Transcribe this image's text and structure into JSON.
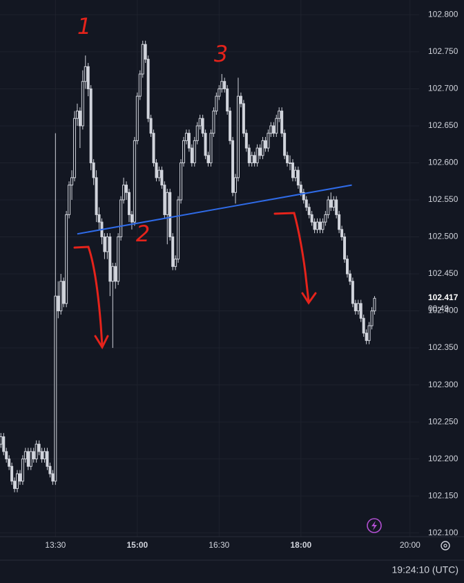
{
  "chart_data": {
    "type": "candlestick",
    "xlim": [
      "12:29",
      "20:10"
    ],
    "ylim": [
      102.095,
      102.82
    ],
    "xticks": [
      "13:30",
      "15:00",
      "16:30",
      "18:00",
      "20:00"
    ],
    "yticks": [
      {
        "value": 102.1,
        "label": "102.100"
      },
      {
        "value": 102.15,
        "label": "102.150"
      },
      {
        "value": 102.2,
        "label": "102.200"
      },
      {
        "value": 102.25,
        "label": "102.250"
      },
      {
        "value": 102.3,
        "label": "102.300"
      },
      {
        "value": 102.35,
        "label": "102.350"
      },
      {
        "value": 102.4,
        "label": "102.400"
      },
      {
        "value": 102.45,
        "label": "102.450"
      },
      {
        "value": 102.5,
        "label": "102.500"
      },
      {
        "value": 102.55,
        "label": "102.550"
      },
      {
        "value": 102.6,
        "label": "102.600"
      },
      {
        "value": 102.65,
        "label": "102.650"
      },
      {
        "value": 102.7,
        "label": "102.700"
      },
      {
        "value": 102.75,
        "label": "102.750"
      },
      {
        "value": 102.8,
        "label": "102.800"
      }
    ],
    "grid": true,
    "color": "#d1d4dc",
    "countdown": "00:49",
    "clock": "19:24:10 (UTC)",
    "annotations": [
      "1",
      "2",
      "3"
    ],
    "trendline": {
      "x": [
        "13:54",
        "18:56"
      ],
      "y": [
        102.504,
        102.57
      ],
      "color": "#2f6be8"
    },
    "x": [
      "12:30",
      "12:33",
      "12:36",
      "12:39",
      "12:42",
      "12:45",
      "12:48",
      "12:51",
      "12:54",
      "12:57",
      "13:00",
      "13:03",
      "13:06",
      "13:09",
      "13:12",
      "13:15",
      "13:18",
      "13:21",
      "13:24",
      "13:27",
      "13:30",
      "13:33",
      "13:36",
      "13:39",
      "13:42",
      "13:45",
      "13:48",
      "13:51",
      "13:54",
      "13:57",
      "14:00",
      "14:03",
      "14:06",
      "14:09",
      "14:12",
      "14:15",
      "14:18",
      "14:21",
      "14:24",
      "14:27",
      "14:30",
      "14:33",
      "14:36",
      "14:39",
      "14:42",
      "14:45",
      "14:48",
      "14:51",
      "14:54",
      "14:57",
      "15:00",
      "15:03",
      "15:06",
      "15:09",
      "15:12",
      "15:15",
      "15:18",
      "15:21",
      "15:24",
      "15:27",
      "15:30",
      "15:33",
      "15:36",
      "15:39",
      "15:42",
      "15:45",
      "15:48",
      "15:51",
      "15:54",
      "15:57",
      "16:00",
      "16:03",
      "16:06",
      "16:09",
      "16:12",
      "16:15",
      "16:18",
      "16:21",
      "16:24",
      "16:27",
      "16:30",
      "16:33",
      "16:36",
      "16:39",
      "16:42",
      "16:45",
      "16:48",
      "16:51",
      "16:54",
      "16:57",
      "17:00",
      "17:03",
      "17:06",
      "17:09",
      "17:12",
      "17:15",
      "17:18",
      "17:21",
      "17:24",
      "17:27",
      "17:30",
      "17:33",
      "17:36",
      "17:39",
      "17:42",
      "17:45",
      "17:48",
      "17:51",
      "17:54",
      "17:57",
      "18:00",
      "18:03",
      "18:06",
      "18:09",
      "18:12",
      "18:15",
      "18:18",
      "18:21",
      "18:24",
      "18:27",
      "18:30",
      "18:33",
      "18:36",
      "18:39",
      "18:42",
      "18:45",
      "18:48",
      "18:51",
      "18:54",
      "18:57",
      "19:00",
      "19:03",
      "19:06",
      "19:09",
      "19:12",
      "19:15",
      "19:18",
      "19:21"
    ],
    "ohlc": [
      [
        102.22,
        102.235,
        102.215,
        102.23
      ],
      [
        102.23,
        102.235,
        102.205,
        102.21
      ],
      [
        102.21,
        102.215,
        102.195,
        102.2
      ],
      [
        102.2,
        102.205,
        102.185,
        102.19
      ],
      [
        102.19,
        102.195,
        102.165,
        102.17
      ],
      [
        102.17,
        102.175,
        102.155,
        102.16
      ],
      [
        102.16,
        102.185,
        102.155,
        102.18
      ],
      [
        102.18,
        102.185,
        102.165,
        102.17
      ],
      [
        102.17,
        102.205,
        102.165,
        102.2
      ],
      [
        102.2,
        102.215,
        102.195,
        102.21
      ],
      [
        102.21,
        102.215,
        102.185,
        102.19
      ],
      [
        102.19,
        102.215,
        102.185,
        102.21
      ],
      [
        102.21,
        102.215,
        102.195,
        102.2
      ],
      [
        102.2,
        102.225,
        102.195,
        102.22
      ],
      [
        102.22,
        102.225,
        102.205,
        102.21
      ],
      [
        102.21,
        102.215,
        102.195,
        102.2
      ],
      [
        102.2,
        102.215,
        102.195,
        102.21
      ],
      [
        102.21,
        102.215,
        102.185,
        102.19
      ],
      [
        102.19,
        102.195,
        102.175,
        102.18
      ],
      [
        102.18,
        102.185,
        102.165,
        102.17
      ],
      [
        102.17,
        102.64,
        102.165,
        102.42
      ],
      [
        102.42,
        102.44,
        102.39,
        102.4
      ],
      [
        102.4,
        102.45,
        102.395,
        102.44
      ],
      [
        102.44,
        102.445,
        102.405,
        102.41
      ],
      [
        102.41,
        102.535,
        102.405,
        102.53
      ],
      [
        102.53,
        102.575,
        102.525,
        102.57
      ],
      [
        102.57,
        102.59,
        102.55,
        102.58
      ],
      [
        102.58,
        102.67,
        102.575,
        102.66
      ],
      [
        102.66,
        102.68,
        102.65,
        102.67
      ],
      [
        102.67,
        102.675,
        102.62,
        102.65
      ],
      [
        102.65,
        102.725,
        102.645,
        102.71
      ],
      [
        102.71,
        102.745,
        102.7,
        102.73
      ],
      [
        102.73,
        102.735,
        102.69,
        102.7
      ],
      [
        102.7,
        102.705,
        102.59,
        102.6
      ],
      [
        102.6,
        102.605,
        102.57,
        102.58
      ],
      [
        102.58,
        102.59,
        102.52,
        102.53
      ],
      [
        102.53,
        102.54,
        102.51,
        102.52
      ],
      [
        102.52,
        102.525,
        102.49,
        102.5
      ],
      [
        102.5,
        102.505,
        102.47,
        102.48
      ],
      [
        102.48,
        102.505,
        102.47,
        102.5
      ],
      [
        102.5,
        102.505,
        102.42,
        102.44
      ],
      [
        102.44,
        102.465,
        102.35,
        102.46
      ],
      [
        102.46,
        102.465,
        102.43,
        102.44
      ],
      [
        102.44,
        102.505,
        102.435,
        102.5
      ],
      [
        102.5,
        102.555,
        102.495,
        102.55
      ],
      [
        102.55,
        102.58,
        102.545,
        102.57
      ],
      [
        102.57,
        102.575,
        102.55,
        102.56
      ],
      [
        102.56,
        102.565,
        102.52,
        102.53
      ],
      [
        102.53,
        102.535,
        102.51,
        102.52
      ],
      [
        102.52,
        102.635,
        102.515,
        102.63
      ],
      [
        102.63,
        102.695,
        102.625,
        102.69
      ],
      [
        102.69,
        102.725,
        102.685,
        102.72
      ],
      [
        102.72,
        102.765,
        102.715,
        102.76
      ],
      [
        102.76,
        102.765,
        102.735,
        102.74
      ],
      [
        102.74,
        102.745,
        102.655,
        102.66
      ],
      [
        102.66,
        102.665,
        102.635,
        102.64
      ],
      [
        102.64,
        102.645,
        102.595,
        102.6
      ],
      [
        102.6,
        102.605,
        102.575,
        102.58
      ],
      [
        102.58,
        102.595,
        102.575,
        102.59
      ],
      [
        102.59,
        102.595,
        102.565,
        102.57
      ],
      [
        102.57,
        102.575,
        102.525,
        102.53
      ],
      [
        102.53,
        102.565,
        102.49,
        102.56
      ],
      [
        102.56,
        102.565,
        102.495,
        102.5
      ],
      [
        102.5,
        102.505,
        102.455,
        102.46
      ],
      [
        102.46,
        102.475,
        102.455,
        102.47
      ],
      [
        102.47,
        102.555,
        102.465,
        102.55
      ],
      [
        102.55,
        102.605,
        102.545,
        102.6
      ],
      [
        102.6,
        102.635,
        102.595,
        102.63
      ],
      [
        102.63,
        102.645,
        102.625,
        102.64
      ],
      [
        102.64,
        102.645,
        102.615,
        102.62
      ],
      [
        102.62,
        102.625,
        102.595,
        102.6
      ],
      [
        102.6,
        102.635,
        102.595,
        102.63
      ],
      [
        102.63,
        102.655,
        102.625,
        102.65
      ],
      [
        102.65,
        102.665,
        102.645,
        102.66
      ],
      [
        102.66,
        102.665,
        102.635,
        102.64
      ],
      [
        102.64,
        102.645,
        102.605,
        102.61
      ],
      [
        102.61,
        102.615,
        102.595,
        102.6
      ],
      [
        102.6,
        102.645,
        102.595,
        102.64
      ],
      [
        102.64,
        102.675,
        102.635,
        102.67
      ],
      [
        102.67,
        102.695,
        102.665,
        102.69
      ],
      [
        102.69,
        102.705,
        102.685,
        102.7
      ],
      [
        102.7,
        102.72,
        102.695,
        102.71
      ],
      [
        102.71,
        102.715,
        102.695,
        102.7
      ],
      [
        102.7,
        102.705,
        102.665,
        102.67
      ],
      [
        102.67,
        102.675,
        102.625,
        102.63
      ],
      [
        102.63,
        102.635,
        102.555,
        102.56
      ],
      [
        102.56,
        102.585,
        102.545,
        102.58
      ],
      [
        102.58,
        102.715,
        102.575,
        102.69
      ],
      [
        102.69,
        102.695,
        102.675,
        102.68
      ],
      [
        102.68,
        102.685,
        102.635,
        102.64
      ],
      [
        102.64,
        102.645,
        102.615,
        102.62
      ],
      [
        102.62,
        102.625,
        102.595,
        102.6
      ],
      [
        102.6,
        102.615,
        102.595,
        102.61
      ],
      [
        102.61,
        102.615,
        102.595,
        102.6
      ],
      [
        102.6,
        102.625,
        102.595,
        102.62
      ],
      [
        102.62,
        102.625,
        102.605,
        102.61
      ],
      [
        102.61,
        102.635,
        102.605,
        102.63
      ],
      [
        102.63,
        102.635,
        102.615,
        102.62
      ],
      [
        102.62,
        102.645,
        102.615,
        102.64
      ],
      [
        102.64,
        102.655,
        102.635,
        102.65
      ],
      [
        102.65,
        102.655,
        102.635,
        102.64
      ],
      [
        102.64,
        102.665,
        102.635,
        102.66
      ],
      [
        102.66,
        102.675,
        102.655,
        102.67
      ],
      [
        102.67,
        102.675,
        102.635,
        102.64
      ],
      [
        102.64,
        102.645,
        102.605,
        102.61
      ],
      [
        102.61,
        102.615,
        102.595,
        102.6
      ],
      [
        102.6,
        102.61,
        102.59,
        102.6
      ],
      [
        102.6,
        102.605,
        102.575,
        102.58
      ],
      [
        102.58,
        102.595,
        102.575,
        102.59
      ],
      [
        102.59,
        102.595,
        102.565,
        102.57
      ],
      [
        102.57,
        102.575,
        102.555,
        102.56
      ],
      [
        102.56,
        102.565,
        102.545,
        102.55
      ],
      [
        102.55,
        102.555,
        102.535,
        102.54
      ],
      [
        102.54,
        102.545,
        102.525,
        102.53
      ],
      [
        102.53,
        102.535,
        102.515,
        102.52
      ],
      [
        102.52,
        102.525,
        102.505,
        102.51
      ],
      [
        102.51,
        102.525,
        102.505,
        102.52
      ],
      [
        102.52,
        102.525,
        102.505,
        102.51
      ],
      [
        102.51,
        102.525,
        102.505,
        102.52
      ],
      [
        102.52,
        102.535,
        102.515,
        102.53
      ],
      [
        102.53,
        102.555,
        102.525,
        102.55
      ],
      [
        102.55,
        102.56,
        102.535,
        102.54
      ],
      [
        102.54,
        102.555,
        102.535,
        102.55
      ],
      [
        102.55,
        102.555,
        102.525,
        102.53
      ],
      [
        102.53,
        102.535,
        102.505,
        102.51
      ],
      [
        102.51,
        102.515,
        102.495,
        102.5
      ],
      [
        102.5,
        102.505,
        102.465,
        102.47
      ],
      [
        102.47,
        102.475,
        102.445,
        102.45
      ],
      [
        102.45,
        102.455,
        102.435,
        102.44
      ],
      [
        102.44,
        102.445,
        102.405,
        102.41
      ],
      [
        102.41,
        102.415,
        102.395,
        102.4
      ],
      [
        102.4,
        102.415,
        102.395,
        102.41
      ],
      [
        102.41,
        102.415,
        102.385,
        102.39
      ],
      [
        102.39,
        102.395,
        102.365,
        102.37
      ],
      [
        102.37,
        102.375,
        102.355,
        102.36
      ],
      [
        102.36,
        102.385,
        102.355,
        102.38
      ],
      [
        102.38,
        102.405,
        102.375,
        102.4
      ],
      [
        102.4,
        102.42,
        102.395,
        102.417
      ]
    ]
  }
}
